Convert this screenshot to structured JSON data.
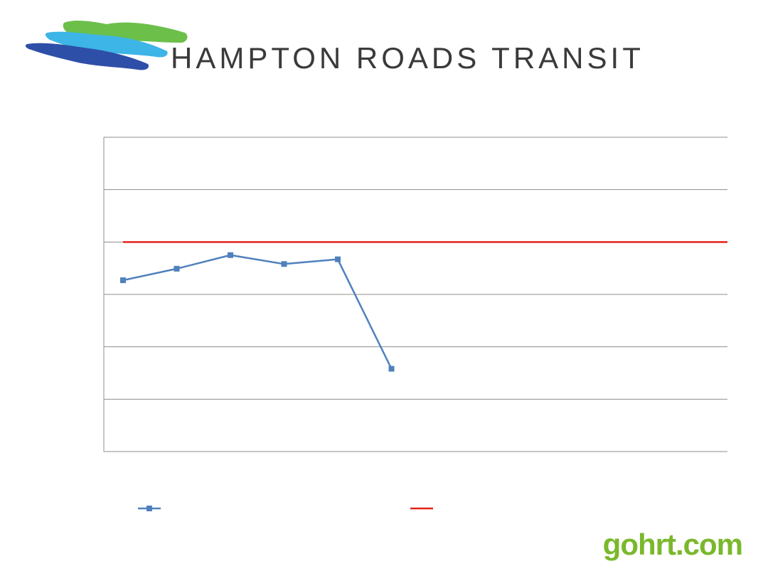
{
  "brand": {
    "logo": "Hampton Roads Transit wave logo",
    "title": "HAMPTON ROADS TRANSIT",
    "url": "gohrt.com"
  },
  "colors": {
    "series": "#4f81bd",
    "target": "#e2231a",
    "grid": "#8c8c8c",
    "logo_green": "#6cc04a",
    "logo_cyan": "#3db5e6",
    "logo_blue": "#2e4fa8",
    "url_green": "#7ab82c"
  },
  "chart_data": {
    "type": "line",
    "title": "",
    "xlabel": "",
    "ylabel": "",
    "categories": [
      "",
      "",
      "",
      "",
      "",
      "",
      "",
      "",
      "",
      "",
      "",
      ""
    ],
    "ylim": [
      0,
      6
    ],
    "grid": true,
    "legend": "bottom",
    "series": [
      {
        "marker": "square",
        "values": [
          3.27,
          3.49,
          3.75,
          3.58,
          3.67,
          1.58,
          null,
          null,
          null,
          null,
          null,
          null
        ]
      },
      {
        "marker": "none",
        "values": [
          4.0,
          4.0,
          4.0,
          4.0,
          4.0,
          4.0,
          4.0,
          4.0,
          4.0,
          4.0,
          4.0,
          4.0
        ]
      }
    ]
  }
}
